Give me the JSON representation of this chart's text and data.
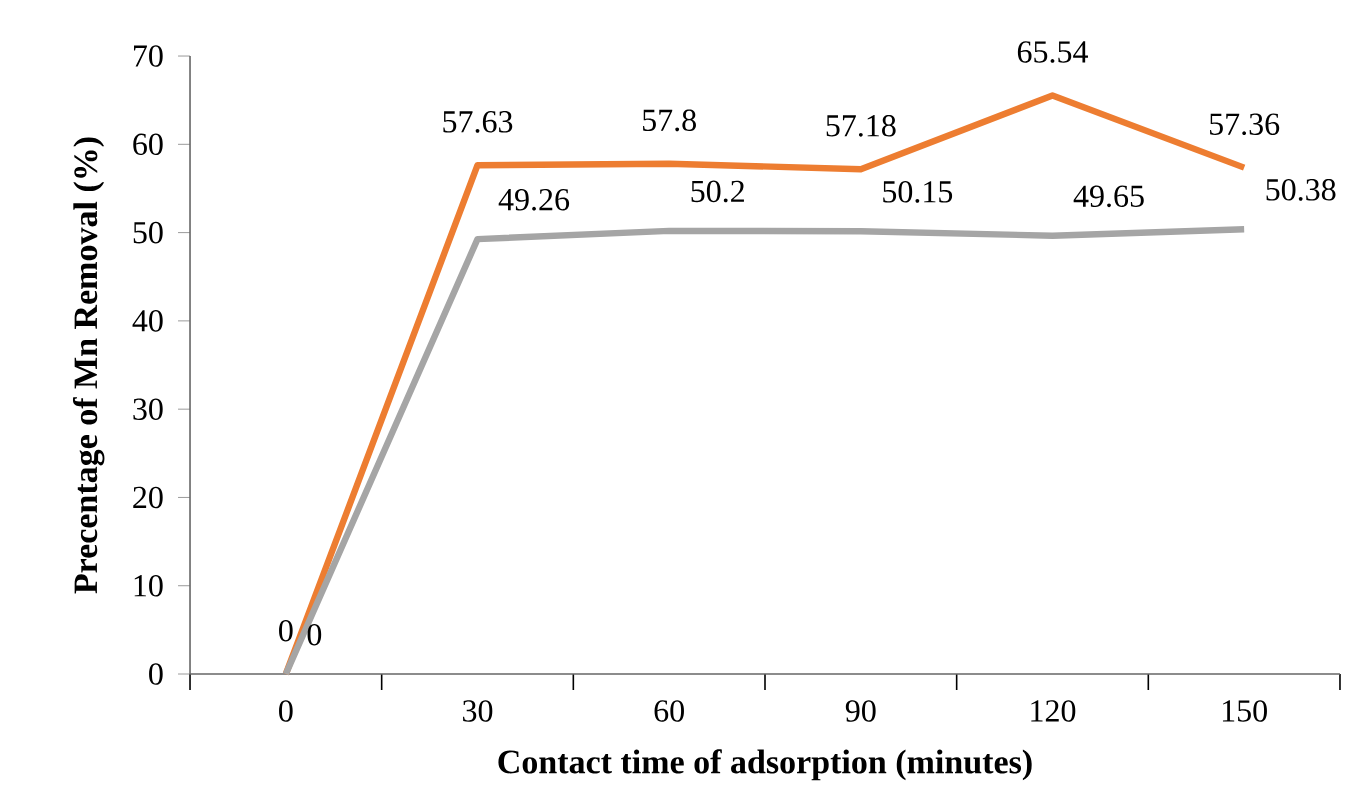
{
  "chart_data": {
    "type": "line",
    "xlabel": "Contact time of adsorption (minutes)",
    "ylabel": "Precentage of Mn Removal (%)",
    "categories": [
      "0",
      "30",
      "60",
      "90",
      "120",
      "150"
    ],
    "series": [
      {
        "color": "#ed7d31",
        "values": [
          0,
          57.63,
          57.8,
          57.18,
          65.54,
          57.36
        ]
      },
      {
        "color": "#a5a5a5",
        "values": [
          0,
          49.26,
          50.2,
          50.15,
          49.65,
          50.38
        ]
      }
    ],
    "ylim": [
      0,
      70
    ],
    "yticks": [
      0,
      10,
      20,
      30,
      40,
      50,
      60,
      70
    ],
    "data_labels": true,
    "grid": false,
    "marker": "none",
    "line_style": "solid"
  }
}
